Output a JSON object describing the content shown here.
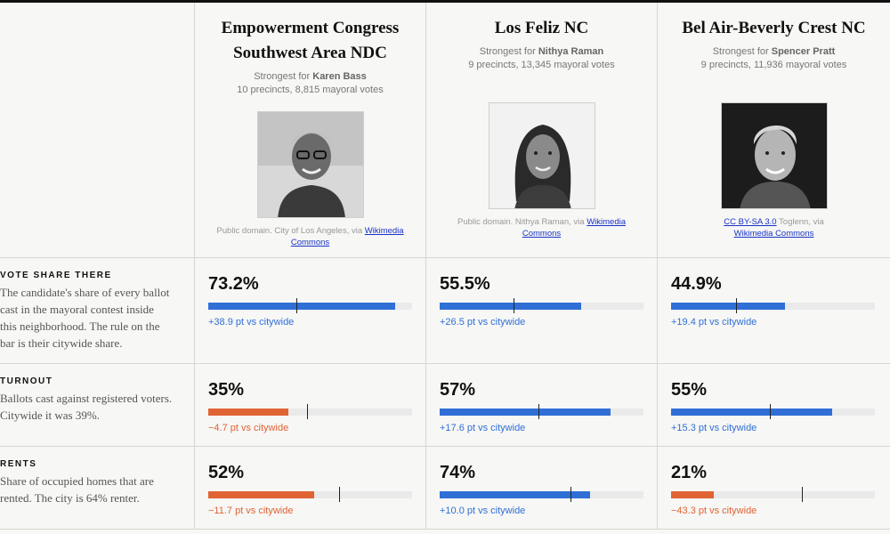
{
  "colors": {
    "positive": "#2f6fd6",
    "negative": "#e06334",
    "rule": "#222222"
  },
  "candidates": [
    {
      "name_line1": "Empowerment Congress",
      "name_line2": "Southwest Area NDC",
      "strongest_prefix": "Strongest for ",
      "strongest_name": "Karen Bass",
      "stats": "10 precincts, 8,815 mayoral votes",
      "photo_icon": "portrait-icon",
      "credit_text": "Public domain. City of Los Angeles, via ",
      "credit_link": "Wikimedia Commons",
      "credit_prefix_link": ""
    },
    {
      "name_line1": "Los Feliz NC",
      "name_line2": "",
      "strongest_prefix": "Strongest for ",
      "strongest_name": "Nithya Raman",
      "stats": "9 precincts, 13,345 mayoral votes",
      "photo_icon": "portrait-icon",
      "credit_text": "Public domain. Nithya Raman, via ",
      "credit_link": "Wikimedia Commons",
      "credit_prefix_link": ""
    },
    {
      "name_line1": "Bel Air-Beverly Crest NC",
      "name_line2": "",
      "strongest_prefix": "Strongest for ",
      "strongest_name": "Spencer Pratt",
      "stats": "9 precincts, 11,936 mayoral votes",
      "photo_icon": "portrait-icon",
      "credit_text": " Toglenn, via ",
      "credit_link": "Wikimedia Commons",
      "credit_prefix_link": "CC BY-SA 3.0"
    }
  ],
  "metrics": [
    {
      "label": "VOTE SHARE THERE",
      "desc": "The candidate's share of every ballot cast in the mayoral contest inside this neighborhood. The rule on the bar is their citywide share.",
      "cells": [
        {
          "value": "73.2%",
          "fill": 0.916,
          "rule": 0.432,
          "sign": "positive",
          "delta": "+38.9 pt vs citywide"
        },
        {
          "value": "55.5%",
          "fill": 0.694,
          "rule": 0.362,
          "sign": "positive",
          "delta": "+26.5 pt vs citywide"
        },
        {
          "value": "44.9%",
          "fill": 0.56,
          "rule": 0.32,
          "sign": "positive",
          "delta": "+19.4 pt vs citywide"
        }
      ]
    },
    {
      "label": "TURNOUT",
      "desc": "Ballots cast against registered voters. Citywide it was 39%.",
      "cells": [
        {
          "value": "35%",
          "fill": 0.393,
          "rule": 0.485,
          "sign": "negative",
          "delta": "−4.7 pt vs citywide"
        },
        {
          "value": "57%",
          "fill": 0.838,
          "rule": 0.485,
          "sign": "positive",
          "delta": "+17.6 pt vs citywide"
        },
        {
          "value": "55%",
          "fill": 0.79,
          "rule": 0.485,
          "sign": "positive",
          "delta": "+15.3 pt vs citywide"
        }
      ]
    },
    {
      "label": "RENTS",
      "desc": "Share of occupied homes that are rented. The city is 64% renter.",
      "cells": [
        {
          "value": "52%",
          "fill": 0.52,
          "rule": 0.64,
          "sign": "negative",
          "delta": "−11.7 pt vs citywide"
        },
        {
          "value": "74%",
          "fill": 0.74,
          "rule": 0.64,
          "sign": "positive",
          "delta": "+10.0 pt vs citywide"
        },
        {
          "value": "21%",
          "fill": 0.21,
          "rule": 0.64,
          "sign": "negative",
          "delta": "−43.3 pt vs citywide"
        }
      ]
    }
  ]
}
